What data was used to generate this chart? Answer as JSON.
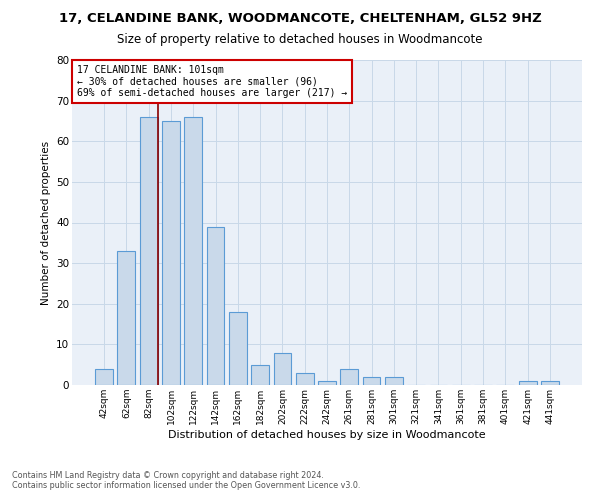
{
  "title": "17, CELANDINE BANK, WOODMANCOTE, CHELTENHAM, GL52 9HZ",
  "subtitle": "Size of property relative to detached houses in Woodmancote",
  "xlabel": "Distribution of detached houses by size in Woodmancote",
  "ylabel": "Number of detached properties",
  "footnote1": "Contains HM Land Registry data © Crown copyright and database right 2024.",
  "footnote2": "Contains public sector information licensed under the Open Government Licence v3.0.",
  "bin_labels": [
    "42sqm",
    "62sqm",
    "82sqm",
    "102sqm",
    "122sqm",
    "142sqm",
    "162sqm",
    "182sqm",
    "202sqm",
    "222sqm",
    "242sqm",
    "261sqm",
    "281sqm",
    "301sqm",
    "321sqm",
    "341sqm",
    "361sqm",
    "381sqm",
    "401sqm",
    "421sqm",
    "441sqm"
  ],
  "bar_values": [
    4,
    33,
    66,
    65,
    66,
    39,
    18,
    5,
    8,
    3,
    1,
    4,
    2,
    2,
    0,
    0,
    0,
    0,
    0,
    1,
    1
  ],
  "bar_color": "#c9d9ea",
  "bar_edge_color": "#5b9bd5",
  "grid_color": "#c8d8e8",
  "vline_color": "#8b0000",
  "annotation_text": "17 CELANDINE BANK: 101sqm\n← 30% of detached houses are smaller (96)\n69% of semi-detached houses are larger (217) →",
  "annotation_box_color": "#ffffff",
  "annotation_box_edge": "#cc0000",
  "ylim": [
    0,
    80
  ],
  "yticks": [
    0,
    10,
    20,
    30,
    40,
    50,
    60,
    70,
    80
  ],
  "bg_color": "#eaf0f8",
  "title_fontsize": 9.5,
  "subtitle_fontsize": 8.5
}
